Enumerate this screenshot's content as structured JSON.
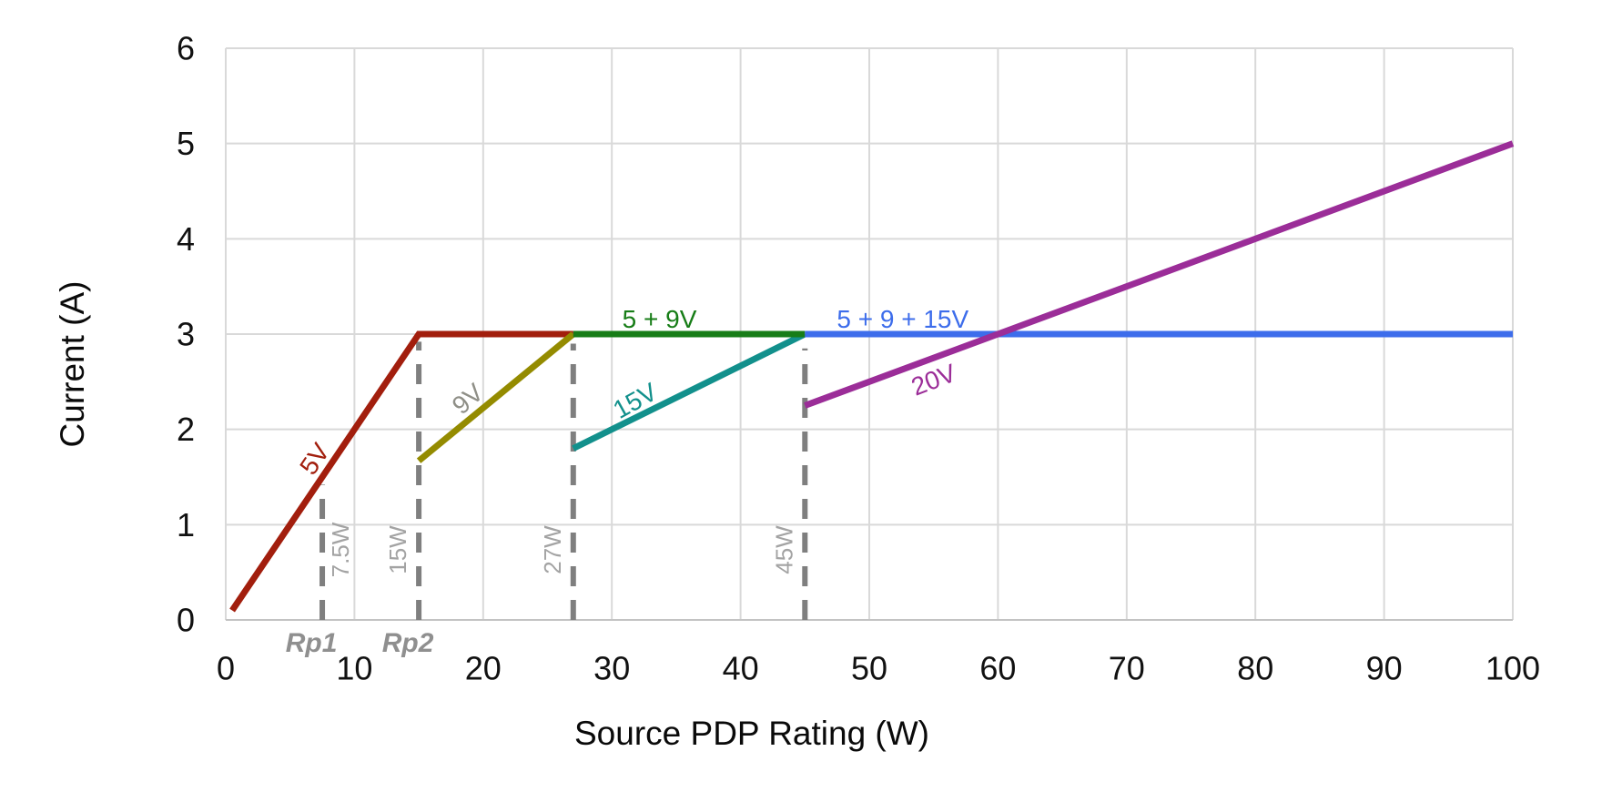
{
  "chart_data": {
    "type": "line",
    "title": "",
    "xlabel": "Source PDP Rating (W)",
    "ylabel": "Current (A)",
    "xlim": [
      0,
      100
    ],
    "ylim": [
      0,
      6
    ],
    "xticks": [
      0,
      10,
      20,
      30,
      40,
      50,
      60,
      70,
      80,
      90,
      100
    ],
    "yticks": [
      0,
      1,
      2,
      3,
      4,
      5,
      6
    ],
    "grid": true,
    "legend_position": "none",
    "series": [
      {
        "name": "5V",
        "color": "#a21e0d",
        "points": [
          [
            0.5,
            0.1
          ],
          [
            15,
            3
          ],
          [
            27,
            3
          ]
        ]
      },
      {
        "name": "9V",
        "color": "#948b00",
        "points": [
          [
            15,
            1.67
          ],
          [
            27,
            3
          ]
        ]
      },
      {
        "name": "15V",
        "color": "#12908c",
        "points": [
          [
            27,
            1.8
          ],
          [
            45,
            3
          ]
        ]
      },
      {
        "name": "5 + 9V",
        "color": "#177d17",
        "points": [
          [
            27,
            3
          ],
          [
            45,
            3
          ]
        ]
      },
      {
        "name": "5 + 9 + 15V",
        "color": "#3d6deb",
        "points": [
          [
            45,
            3
          ],
          [
            100,
            3
          ]
        ]
      },
      {
        "name": "20V",
        "color": "#9b2d98",
        "points": [
          [
            45,
            2.25
          ],
          [
            100,
            5
          ]
        ]
      }
    ],
    "thresholds": [
      {
        "label": "7.5W",
        "x": 7.5,
        "top": 1.42,
        "label_side": "right",
        "rp": "Rp1"
      },
      {
        "label": "15W",
        "x": 15,
        "top": 2.92,
        "label_side": "left",
        "rp": "Rp2"
      },
      {
        "label": "27W",
        "x": 27,
        "top": 2.9,
        "label_side": "left"
      },
      {
        "label": "45W",
        "x": 45,
        "top": 2.85,
        "label_side": "left"
      }
    ],
    "annotations": [
      {
        "text": "5V",
        "x": 6.9,
        "y": 1.69,
        "rotate": -56,
        "color": "#a21e0d"
      },
      {
        "text": "9V",
        "x": 18.8,
        "y": 2.32,
        "rotate": -41,
        "color": "#8f8f87"
      },
      {
        "text": "15V",
        "x": 31.8,
        "y": 2.3,
        "rotate": -29,
        "color": "#12908c"
      },
      {
        "text": "20V",
        "x": 55.0,
        "y": 2.52,
        "rotate": -21,
        "color": "#9b2d98"
      },
      {
        "text": "5 + 9V",
        "x": 33.7,
        "y": 3.16,
        "rotate": 0,
        "color": "#177d17"
      },
      {
        "text": "5 + 9 + 15V",
        "x": 52.6,
        "y": 3.16,
        "rotate": 0,
        "color": "#3d6deb"
      }
    ],
    "colors": {
      "gridline": "#d9d9d9",
      "axis_line": "#c3c3c3",
      "dashed_marker": "#7f7f7f",
      "threshold_label": "#a3a3a3",
      "rp_label": "#8f8f8f",
      "tick_label": "#111111"
    }
  }
}
